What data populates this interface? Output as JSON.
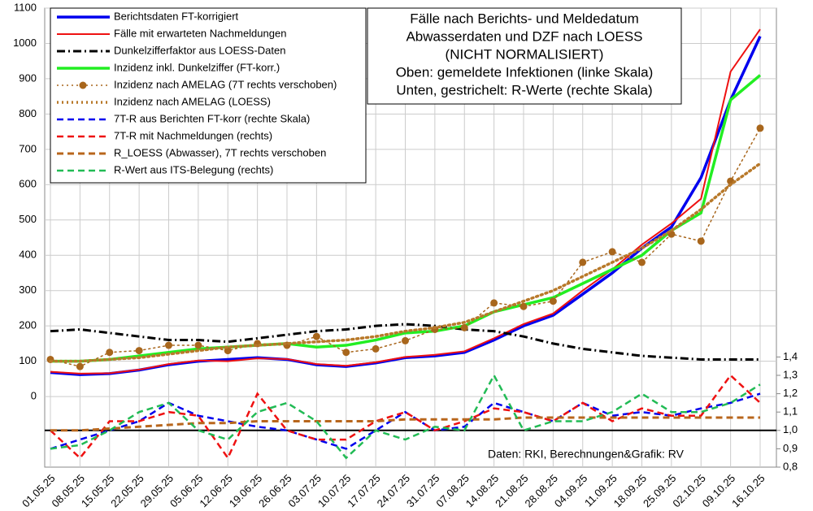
{
  "chart_data": {
    "type": "line",
    "title": [
      "Fälle nach Berichts- und Meldedatum",
      "Abwasserdaten und DZF nach LOESS",
      "(NICHT NORMALISIERT)",
      "Oben: gemeldete Infektionen (linke Skala)",
      "Unten, gestrichelt: R-Werte (rechte Skala)"
    ],
    "source": "Daten: RKI, Berechnungen&Grafik: RV",
    "categories": [
      "01.05.25",
      "08.05.25",
      "15.05.25",
      "22.05.25",
      "29.05.25",
      "05.06.25",
      "12.06.25",
      "19.06.25",
      "26.06.25",
      "03.07.25",
      "10.07.25",
      "17.07.25",
      "24.07.25",
      "31.07.25",
      "07.08.25",
      "14.08.25",
      "21.08.25",
      "28.08.25",
      "04.09.25",
      "11.09.25",
      "18.09.25",
      "25.09.25",
      "02.10.25",
      "09.10.25",
      "16.10.25"
    ],
    "ylim": [
      -200,
      1100
    ],
    "yticks": [
      0,
      100,
      200,
      300,
      400,
      500,
      600,
      700,
      800,
      900,
      1000,
      1100
    ],
    "y2lim": [
      0.8,
      3.3
    ],
    "y2ticks": [
      {
        "value": 0.8,
        "label": "0,8"
      },
      {
        "value": 0.9,
        "label": "0,9"
      },
      {
        "value": 1.0,
        "label": "1,0"
      },
      {
        "value": 1.1,
        "label": "1,1"
      },
      {
        "value": 1.2,
        "label": "1,2"
      },
      {
        "value": 1.3,
        "label": "1,3"
      },
      {
        "value": 1.4,
        "label": "1,4"
      }
    ],
    "y2_refline": 1.0,
    "grid": true,
    "series": [
      {
        "name": "Berichtsdaten FT-korrigiert",
        "color": "#0000ee",
        "style": "solid",
        "width": 3.5,
        "values": [
          68,
          62,
          65,
          75,
          90,
          100,
          105,
          110,
          105,
          90,
          85,
          95,
          110,
          115,
          125,
          160,
          200,
          230,
          290,
          350,
          420,
          480,
          620,
          840,
          1020
        ]
      },
      {
        "name": "Fälle mit erwarteten Nachmeldungen",
        "color": "#ee1111",
        "style": "solid",
        "width": 2,
        "values": [
          70,
          65,
          66,
          76,
          92,
          102,
          100,
          108,
          106,
          92,
          87,
          97,
          112,
          118,
          128,
          165,
          205,
          235,
          300,
          360,
          430,
          490,
          560,
          920,
          1040
        ]
      },
      {
        "name": "Dunkelzifferfaktor aus LOESS-Daten",
        "color": "#000000",
        "style": "dashdot",
        "width": 3,
        "values": [
          185,
          190,
          180,
          170,
          160,
          160,
          155,
          165,
          175,
          185,
          190,
          200,
          205,
          200,
          190,
          185,
          170,
          150,
          135,
          125,
          115,
          110,
          105,
          105,
          105
        ]
      },
      {
        "name": "Inzidenz inkl. Dunkelziffer (FT-korr.)",
        "color": "#22ee22",
        "style": "solid",
        "width": 3.5,
        "values": [
          100,
          100,
          105,
          115,
          125,
          135,
          140,
          145,
          150,
          140,
          145,
          160,
          180,
          185,
          200,
          240,
          260,
          280,
          320,
          360,
          400,
          470,
          520,
          840,
          910
        ]
      },
      {
        "name": "Inzidenz nach AMELAG (7T rechts verschoben)",
        "color": "#a8661c",
        "style": "dotted",
        "width": 1.5,
        "marker": true,
        "values": [
          105,
          85,
          125,
          130,
          145,
          145,
          130,
          150,
          145,
          170,
          125,
          135,
          158,
          190,
          195,
          265,
          255,
          270,
          380,
          410,
          380,
          460,
          440,
          610,
          760
        ]
      },
      {
        "name": "Inzidenz nach AMELAG (LOESS)",
        "color": "#b8792a",
        "style": "dotted",
        "width": 3.5,
        "values": [
          100,
          100,
          105,
          110,
          120,
          130,
          140,
          145,
          150,
          155,
          160,
          170,
          185,
          195,
          210,
          240,
          270,
          300,
          340,
          380,
          420,
          470,
          530,
          600,
          660
        ]
      },
      {
        "name": "7T-R aus Berichten FT-korr (rechte Skala)",
        "color": "#0000ee",
        "style": "dashed",
        "width": 2.5,
        "axis": "y2",
        "values": [
          0.9,
          0.95,
          1.0,
          1.05,
          1.15,
          1.08,
          1.05,
          1.02,
          1.0,
          0.95,
          0.9,
          1.0,
          1.1,
          1.0,
          1.02,
          1.15,
          1.1,
          1.05,
          1.15,
          1.08,
          1.1,
          1.08,
          1.12,
          1.15,
          1.2
        ]
      },
      {
        "name": "7T-R mit Nachmeldungen (rechts)",
        "color": "#ee1111",
        "style": "dashed",
        "width": 2.5,
        "axis": "y2",
        "values": [
          1.0,
          0.85,
          1.05,
          1.05,
          1.1,
          1.08,
          0.85,
          1.2,
          1.0,
          0.95,
          0.95,
          1.05,
          1.1,
          1.0,
          1.05,
          1.12,
          1.1,
          1.05,
          1.15,
          1.05,
          1.12,
          1.08,
          1.08,
          1.3,
          1.15
        ]
      },
      {
        "name": "R_LOESS (Abwasser), 7T rechts verschoben",
        "color": "#b8661c",
        "style": "dashed",
        "width": 3,
        "axis": "y2",
        "values": [
          1.0,
          1.0,
          1.01,
          1.02,
          1.03,
          1.04,
          1.04,
          1.05,
          1.05,
          1.05,
          1.05,
          1.05,
          1.06,
          1.06,
          1.06,
          1.06,
          1.07,
          1.07,
          1.07,
          1.07,
          1.07,
          1.07,
          1.07,
          1.07,
          1.07
        ]
      },
      {
        "name": "R-Wert aus ITS-Belegung (rechts)",
        "color": "#22bb55",
        "style": "dashed",
        "width": 2.5,
        "axis": "y2",
        "values": [
          0.9,
          0.92,
          1.0,
          1.1,
          1.15,
          1.0,
          0.95,
          1.1,
          1.15,
          1.05,
          0.85,
          1.0,
          0.95,
          1.02,
          1.0,
          1.3,
          1.0,
          1.05,
          1.05,
          1.1,
          1.2,
          1.1,
          1.1,
          1.15,
          1.25
        ]
      }
    ]
  }
}
